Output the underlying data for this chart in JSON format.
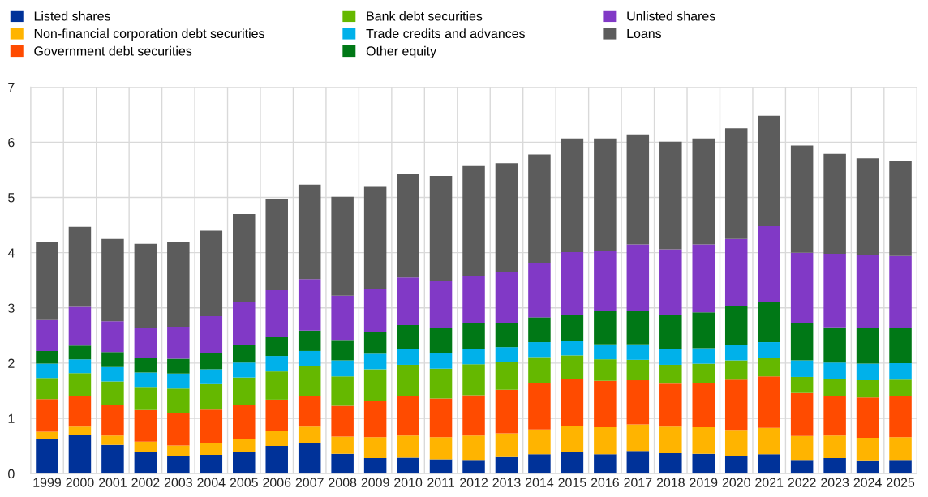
{
  "chart_data": {
    "type": "bar",
    "stacked": true,
    "legend": "top",
    "grid": true,
    "categories": [
      "1999",
      "2000",
      "2001",
      "2002",
      "2003",
      "2004",
      "2005",
      "2006",
      "2007",
      "2008",
      "2009",
      "2010",
      "2011",
      "2012",
      "2013",
      "2014",
      "2015",
      "2016",
      "2017",
      "2018",
      "2019",
      "2020",
      "2021",
      "2022",
      "2023",
      "2024",
      "2025"
    ],
    "ylim": [
      0,
      7
    ],
    "yticks": [
      0,
      1,
      2,
      3,
      4,
      5,
      6,
      7
    ],
    "series": [
      {
        "name": "Listed shares",
        "color": "#003299",
        "values": [
          0.62,
          0.7,
          0.52,
          0.39,
          0.31,
          0.34,
          0.4,
          0.5,
          0.56,
          0.36,
          0.28,
          0.29,
          0.26,
          0.25,
          0.3,
          0.35,
          0.39,
          0.35,
          0.41,
          0.37,
          0.36,
          0.31,
          0.35,
          0.25,
          0.28,
          0.24,
          0.25
        ]
      },
      {
        "name": "Non-financial corporation debt securities",
        "color": "#ffb400",
        "values": [
          0.14,
          0.15,
          0.17,
          0.19,
          0.2,
          0.22,
          0.23,
          0.27,
          0.29,
          0.31,
          0.38,
          0.4,
          0.4,
          0.44,
          0.43,
          0.45,
          0.48,
          0.49,
          0.48,
          0.48,
          0.48,
          0.48,
          0.48,
          0.43,
          0.41,
          0.41,
          0.41
        ]
      },
      {
        "name": "Government debt securities",
        "color": "#ff4b00",
        "values": [
          0.59,
          0.56,
          0.56,
          0.57,
          0.59,
          0.6,
          0.61,
          0.57,
          0.55,
          0.56,
          0.66,
          0.72,
          0.7,
          0.73,
          0.79,
          0.84,
          0.84,
          0.84,
          0.8,
          0.78,
          0.8,
          0.91,
          0.93,
          0.78,
          0.72,
          0.73,
          0.74
        ]
      },
      {
        "name": "Bank debt securities",
        "color": "#65b800",
        "values": [
          0.38,
          0.41,
          0.42,
          0.42,
          0.44,
          0.46,
          0.5,
          0.51,
          0.54,
          0.53,
          0.57,
          0.56,
          0.54,
          0.56,
          0.5,
          0.47,
          0.43,
          0.39,
          0.37,
          0.34,
          0.35,
          0.35,
          0.33,
          0.29,
          0.3,
          0.31,
          0.3
        ]
      },
      {
        "name": "Trade credits and advances",
        "color": "#00b1ea",
        "values": [
          0.26,
          0.25,
          0.26,
          0.26,
          0.27,
          0.27,
          0.27,
          0.28,
          0.28,
          0.29,
          0.28,
          0.29,
          0.29,
          0.28,
          0.27,
          0.27,
          0.27,
          0.27,
          0.28,
          0.28,
          0.28,
          0.28,
          0.29,
          0.3,
          0.3,
          0.3,
          0.3
        ]
      },
      {
        "name": "Other equity",
        "color": "#007816",
        "values": [
          0.23,
          0.25,
          0.27,
          0.27,
          0.27,
          0.29,
          0.32,
          0.34,
          0.37,
          0.37,
          0.4,
          0.43,
          0.44,
          0.46,
          0.43,
          0.45,
          0.47,
          0.6,
          0.61,
          0.62,
          0.65,
          0.7,
          0.72,
          0.67,
          0.64,
          0.64,
          0.64
        ]
      },
      {
        "name": "Unlisted shares",
        "color": "#8139c6",
        "values": [
          0.56,
          0.7,
          0.56,
          0.54,
          0.58,
          0.67,
          0.77,
          0.85,
          0.93,
          0.8,
          0.78,
          0.86,
          0.85,
          0.86,
          0.93,
          0.98,
          1.13,
          1.1,
          1.2,
          1.19,
          1.23,
          1.22,
          1.38,
          1.28,
          1.33,
          1.32,
          1.3
        ]
      },
      {
        "name": "Loans",
        "color": "#5c5c5c",
        "values": [
          1.42,
          1.45,
          1.49,
          1.52,
          1.53,
          1.55,
          1.6,
          1.66,
          1.71,
          1.79,
          1.84,
          1.87,
          1.91,
          1.99,
          1.97,
          1.97,
          2.06,
          2.03,
          1.99,
          1.95,
          1.92,
          2.0,
          2.0,
          1.94,
          1.81,
          1.76,
          1.72
        ]
      }
    ]
  }
}
